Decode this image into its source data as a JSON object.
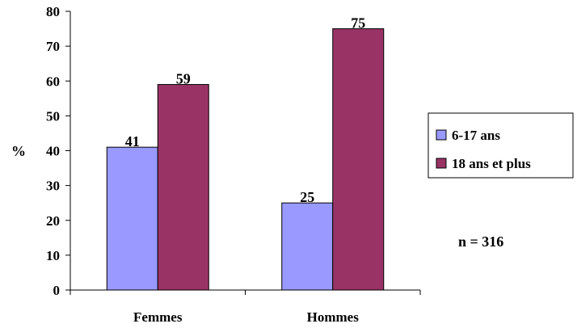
{
  "chart_data": {
    "type": "bar",
    "categories": [
      "Femmes",
      "Hommes"
    ],
    "series": [
      {
        "name": "6-17 ans",
        "values": [
          41,
          25
        ],
        "color": "#9999ff"
      },
      {
        "name": "18 ans et plus",
        "values": [
          59,
          75
        ],
        "color": "#993366"
      }
    ],
    "ylabel": "%",
    "ylim": [
      0,
      80
    ],
    "yticks": [
      0,
      10,
      20,
      30,
      40,
      50,
      60,
      70,
      80
    ],
    "grid": false,
    "legend_position": "right",
    "annotation": "n = 316"
  }
}
